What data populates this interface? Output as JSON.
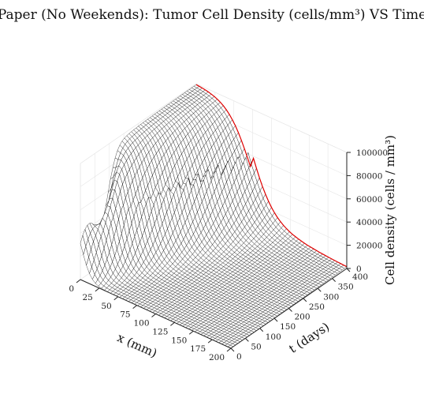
{
  "chart_data": {
    "type": "surface",
    "title": "Paper (No Weekends): Tumor Cell Density (cells/mm³) VS Time",
    "xlabel": "x (mm)",
    "ylabel": "t (days)",
    "zlabel": "Cell density (cells / mm³)",
    "xlim": [
      0,
      200
    ],
    "ylim": [
      0,
      400
    ],
    "zlim": [
      0,
      100000
    ],
    "x_ticks": [
      "0",
      "25",
      "50",
      "75",
      "100",
      "125",
      "150",
      "175",
      "200"
    ],
    "y_ticks": [
      "0",
      "50",
      "100",
      "150",
      "200",
      "250",
      "300",
      "350",
      "400"
    ],
    "z_ticks": [
      "0",
      "20000",
      "40000",
      "60000",
      "80000",
      "100000"
    ],
    "grid": true,
    "surface": {
      "mesh_color": "#000000",
      "face_color": "#ffffff",
      "highlight_edge_color": "#e00000",
      "highlight_edge": "t = 400 days",
      "profile_samples": [
        {
          "t": 0,
          "x": [
            0,
            1,
            2,
            4,
            6
          ],
          "density": [
            69000,
            40000,
            12000,
            1000,
            0
          ]
        },
        {
          "t": 100,
          "x": [
            0,
            10,
            20,
            30,
            40,
            50,
            60
          ],
          "density": [
            80000,
            95000,
            62000,
            22000,
            4000,
            500,
            0
          ]
        },
        {
          "t": 200,
          "x": [
            0,
            20,
            40,
            60,
            80,
            100
          ],
          "density": [
            99000,
            99000,
            80000,
            25000,
            4000,
            0
          ]
        },
        {
          "t": 400,
          "x": [
            0,
            40,
            60,
            80,
            100,
            120,
            150,
            200
          ],
          "density": [
            100000,
            100000,
            99000,
            72000,
            30000,
            15000,
            7000,
            0
          ]
        }
      ]
    },
    "colors": {
      "axes": "#222222",
      "pane_grid": "#e6e6e6",
      "mesh": "#000000",
      "edge": "#e00000"
    }
  }
}
